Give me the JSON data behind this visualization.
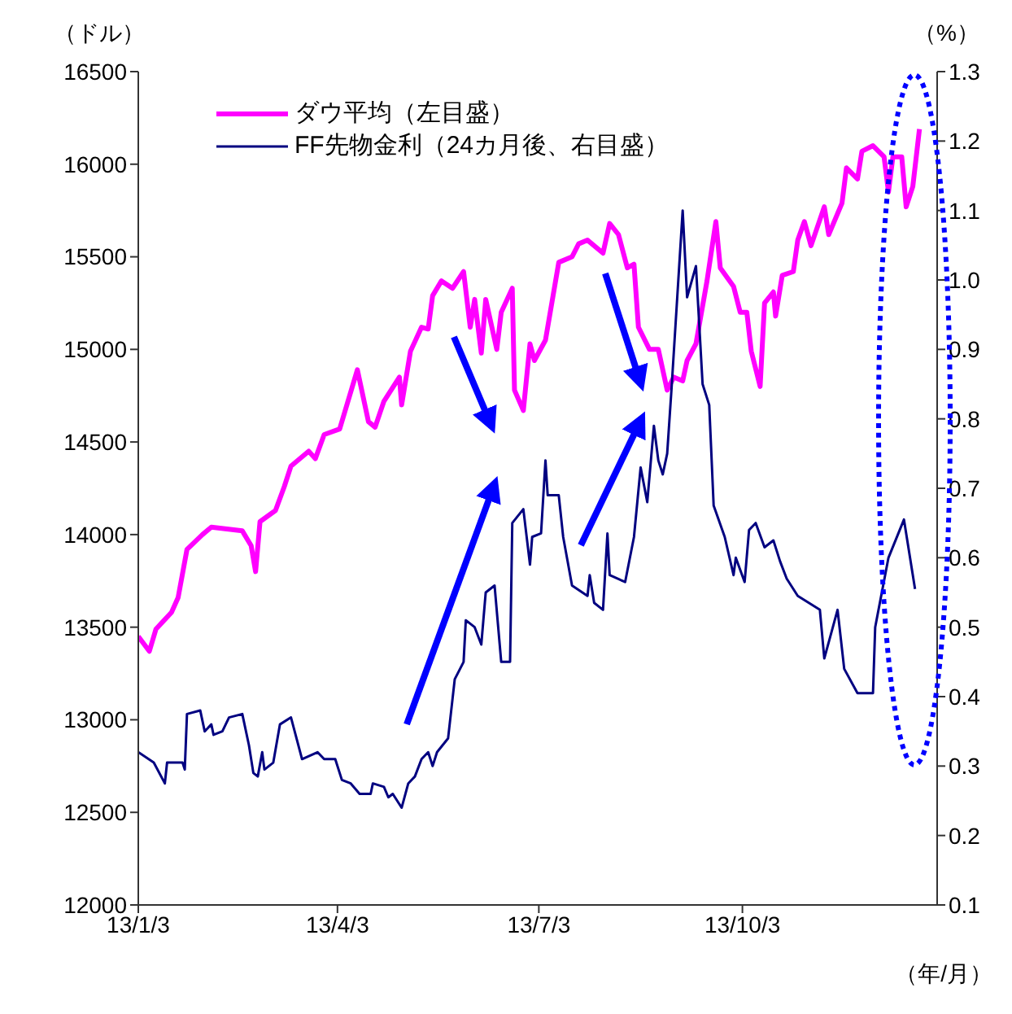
{
  "chart_data": {
    "type": "line",
    "ylabel": "（ドル）",
    "y2label": "（%）",
    "xlabel": "（年/月）",
    "xlim": [
      "--01-03",
      "--12-30"
    ],
    "xticks": [
      {
        "value": "--01-03",
        "label": "13/1/3"
      },
      {
        "value": "--04-03",
        "label": "13/4/3"
      },
      {
        "value": "--07-03",
        "label": "13/7/3"
      },
      {
        "value": "--10-03",
        "label": "13/10/3"
      }
    ],
    "ylim": [
      12000,
      16500
    ],
    "yticks": [
      12000,
      12500,
      13000,
      13500,
      14000,
      14500,
      15000,
      15500,
      16000,
      16500
    ],
    "y2lim": [
      0.1,
      1.3
    ],
    "y2ticks": [
      0.1,
      0.2,
      0.3,
      0.4,
      0.5,
      0.6,
      0.7,
      0.8,
      0.9,
      {
        "value": 1,
        "label": "1.0"
      },
      1.1,
      1.2,
      1.3
    ],
    "grid": false,
    "legend": "top left",
    "marker": "none",
    "line_style": "solid",
    "series": [
      {
        "name": "ダウ平均（左目盛）",
        "color": "#ff00ff",
        "x": [
          "--01-03",
          "--01-08",
          "--01-11",
          "--01-18",
          "--01-21",
          "--01-25",
          "--02-01",
          "--02-05",
          "--02-12",
          "--02-19",
          "--02-23",
          "--02-25",
          "--02-27",
          "--03-06",
          "--03-10",
          "--03-13",
          "--03-21",
          "--03-24",
          "--03-28",
          "--04-04",
          "--04-12",
          "--04-17",
          "--04-20",
          "--04-24",
          "--05-01",
          "--05-02",
          "--05-06",
          "--05-11",
          "--05-14",
          "--05-16",
          "--05-20",
          "--05-25",
          "--05-30",
          "--06-02",
          "--06-04",
          "--06-07",
          "--06-09",
          "--06-14",
          "--06-16",
          "--06-21",
          "--06-22",
          "--06-26",
          "--06-29",
          "--07-01",
          "--07-06",
          "--07-12",
          "--07-18",
          "--07-21",
          "--07-25",
          "--08-01",
          "--08-04",
          "--08-08",
          "--08-12",
          "--08-15",
          "--08-17",
          "--08-22",
          "--08-26",
          "--08-30",
          "--09-02",
          "--09-06",
          "--09-08",
          "--09-12",
          "--09-17",
          "--09-21",
          "--09-23",
          "--09-29",
          "--10-02",
          "--10-05",
          "--10-07",
          "--10-11",
          "--10-13",
          "--10-17",
          "--10-18",
          "--10-21",
          "--10-26",
          "--10-28",
          "--10-31",
          "--11-03",
          "--11-09",
          "--11-11",
          "--11-17",
          "--11-19",
          "--11-24",
          "--11-26",
          "--12-01",
          "--12-06",
          "--12-08",
          "--12-10",
          "--12-14",
          "--12-16",
          "--12-19",
          "--12-22"
        ],
        "values": [
          13450,
          13370,
          13490,
          13580,
          13660,
          13920,
          14000,
          14040,
          14030,
          14020,
          13940,
          13800,
          14070,
          14130,
          14260,
          14370,
          14450,
          14410,
          14540,
          14570,
          14890,
          14610,
          14580,
          14720,
          14850,
          14700,
          14990,
          15120,
          15110,
          15290,
          15370,
          15330,
          15420,
          15120,
          15270,
          14980,
          15270,
          15000,
          15200,
          15330,
          14780,
          14670,
          15030,
          14940,
          15050,
          15470,
          15500,
          15570,
          15590,
          15520,
          15680,
          15620,
          15440,
          15460,
          15120,
          15000,
          15000,
          14780,
          14850,
          14830,
          14940,
          15030,
          15370,
          15690,
          15440,
          15340,
          15200,
          15200,
          14990,
          14800,
          15250,
          15310,
          15180,
          15400,
          15420,
          15590,
          15690,
          15560,
          15770,
          15620,
          15790,
          15980,
          15920,
          16070,
          16100,
          16040,
          15850,
          16040,
          16040,
          15770,
          15880,
          16190
        ]
      },
      {
        "name": "FF先物金利（24カ月後、右目盛）",
        "color": "#000080",
        "axis": "y2",
        "x": [
          "--01-03",
          "--01-10",
          "--01-15",
          "--01-16",
          "--01-23",
          "--01-24",
          "--01-25",
          "--01-31",
          "--02-02",
          "--02-05",
          "--02-06",
          "--02-10",
          "--02-13",
          "--02-19",
          "--02-22",
          "--02-24",
          "--02-26",
          "--02-28",
          "--03-01",
          "--03-05",
          "--03-08",
          "--03-13",
          "--03-18",
          "--03-25",
          "--03-28",
          "--04-02",
          "--04-05",
          "--04-09",
          "--04-13",
          "--04-18",
          "--04-19",
          "--04-24",
          "--04-26",
          "--04-28",
          "--05-02",
          "--05-05",
          "--05-08",
          "--05-11",
          "--05-14",
          "--05-16",
          "--05-18",
          "--05-23",
          "--05-26",
          "--05-30",
          "--05-31",
          "--06-04",
          "--06-07",
          "--06-09",
          "--06-13",
          "--06-16",
          "--06-20",
          "--06-21",
          "--06-26",
          "--06-29",
          "--06-30",
          "--07-04",
          "--07-06",
          "--07-07",
          "--07-12",
          "--07-14",
          "--07-18",
          "--07-25",
          "--07-26",
          "--07-28",
          "--08-01",
          "--08-03",
          "--08-04",
          "--08-11",
          "--08-15",
          "--08-18",
          "--08-21",
          "--08-24",
          "--08-26",
          "--08-28",
          "--08-30",
          "--09-01",
          "--09-06",
          "--09-08",
          "--09-12",
          "--09-15",
          "--09-18",
          "--09-20",
          "--09-25",
          "--09-29",
          "--09-30",
          "--10-04",
          "--10-06",
          "--10-09",
          "--10-13",
          "--10-17",
          "--10-20",
          "--10-23",
          "--10-28",
          "--11-07",
          "--11-09",
          "--11-15",
          "--11-18",
          "--11-24",
          "--12-01",
          "--12-02",
          "--12-08",
          "--12-15",
          "--12-20"
        ],
        "values": [
          0.32,
          0.305,
          0.275,
          0.305,
          0.305,
          0.295,
          0.375,
          0.38,
          0.35,
          0.36,
          0.345,
          0.35,
          0.37,
          0.375,
          0.33,
          0.29,
          0.285,
          0.32,
          0.295,
          0.305,
          0.36,
          0.37,
          0.31,
          0.32,
          0.31,
          0.31,
          0.28,
          0.275,
          0.26,
          0.26,
          0.275,
          0.27,
          0.255,
          0.26,
          0.24,
          0.275,
          0.285,
          0.31,
          0.32,
          0.3,
          0.32,
          0.34,
          0.425,
          0.45,
          0.51,
          0.5,
          0.475,
          0.55,
          0.56,
          0.45,
          0.45,
          0.65,
          0.67,
          0.59,
          0.63,
          0.635,
          0.74,
          0.69,
          0.69,
          0.63,
          0.56,
          0.545,
          0.575,
          0.535,
          0.525,
          0.635,
          0.575,
          0.565,
          0.63,
          0.73,
          0.68,
          0.79,
          0.74,
          0.72,
          0.75,
          0.845,
          1.1,
          0.975,
          1.02,
          0.85,
          0.82,
          0.675,
          0.63,
          0.575,
          0.6,
          0.565,
          0.64,
          0.65,
          0.615,
          0.625,
          0.595,
          0.57,
          0.545,
          0.525,
          0.455,
          0.525,
          0.44,
          0.405,
          0.405,
          0.5,
          0.6,
          0.655,
          0.555
        ]
      }
    ]
  }
}
